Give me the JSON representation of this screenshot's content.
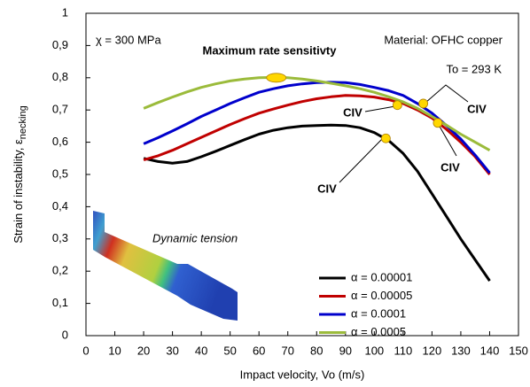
{
  "chart_data": {
    "type": "line",
    "xlabel": "Impact velocity, Vo (m/s)",
    "ylabel": "Strain of instability, ε",
    "ylabel_subscript": "necking",
    "x": [
      20,
      25,
      30,
      35,
      40,
      45,
      50,
      55,
      60,
      65,
      70,
      75,
      80,
      85,
      90,
      95,
      100,
      105,
      110,
      115,
      120,
      125,
      130,
      135,
      140
    ],
    "series": [
      {
        "name": "α = 0.00001",
        "color": "#000000",
        "values": [
          0.55,
          0.54,
          0.535,
          0.54,
          0.555,
          0.572,
          0.59,
          0.608,
          0.625,
          0.637,
          0.645,
          0.65,
          0.652,
          0.653,
          0.652,
          0.645,
          0.63,
          0.605,
          0.565,
          0.51,
          0.44,
          0.37,
          0.3,
          0.235,
          0.17
        ]
      },
      {
        "name": "α = 0.00005",
        "color": "#c00000",
        "values": [
          0.545,
          0.558,
          0.575,
          0.595,
          0.615,
          0.635,
          0.655,
          0.673,
          0.69,
          0.703,
          0.715,
          0.726,
          0.735,
          0.741,
          0.745,
          0.744,
          0.74,
          0.732,
          0.72,
          0.7,
          0.675,
          0.64,
          0.6,
          0.555,
          0.5
        ]
      },
      {
        "name": "α = 0.0001",
        "color": "#0000cc",
        "values": [
          0.595,
          0.614,
          0.635,
          0.657,
          0.68,
          0.7,
          0.72,
          0.738,
          0.755,
          0.766,
          0.775,
          0.781,
          0.785,
          0.786,
          0.785,
          0.779,
          0.77,
          0.76,
          0.745,
          0.72,
          0.69,
          0.652,
          0.61,
          0.56,
          0.505
        ]
      },
      {
        "name": "α = 0.0005",
        "color": "#9bbb3b",
        "values": [
          0.705,
          0.723,
          0.74,
          0.756,
          0.77,
          0.781,
          0.79,
          0.796,
          0.8,
          0.801,
          0.8,
          0.796,
          0.79,
          0.783,
          0.775,
          0.766,
          0.755,
          0.741,
          0.725,
          0.705,
          0.68,
          0.653,
          0.625,
          0.6,
          0.575
        ]
      }
    ],
    "highlight_points": {
      "color": "#ffd700",
      "x": [
        66,
        104,
        108,
        117,
        122
      ],
      "values": [
        0.8,
        0.612,
        0.715,
        0.72,
        0.66
      ]
    },
    "annotations": [
      "χ = 300 MPa",
      "Material: OFHC copper",
      "To = 293 K",
      "Maximum rate sensitivty",
      "CIV",
      "CIV",
      "CIV",
      "CIV",
      "Dynamic tension"
    ],
    "xlim": [
      0,
      150
    ],
    "xticks": [
      0,
      10,
      20,
      30,
      40,
      50,
      60,
      70,
      80,
      90,
      100,
      110,
      120,
      130,
      140,
      150
    ],
    "ylim": [
      0,
      1
    ],
    "yticks": [
      0,
      {
        "value": 0.1,
        "label": "0,1"
      },
      {
        "value": 0.2,
        "label": "0,2"
      },
      {
        "value": 0.3,
        "label": "0,3"
      },
      {
        "value": 0.4,
        "label": "0,4"
      },
      {
        "value": 0.5,
        "label": "0,5"
      },
      {
        "value": 0.6,
        "label": "0,6"
      },
      {
        "value": 0.7,
        "label": "0,7"
      },
      {
        "value": 0.8,
        "label": "0,8"
      },
      {
        "value": 0.9,
        "label": "0,9"
      },
      1
    ],
    "grid": false,
    "legend": "lower right"
  }
}
